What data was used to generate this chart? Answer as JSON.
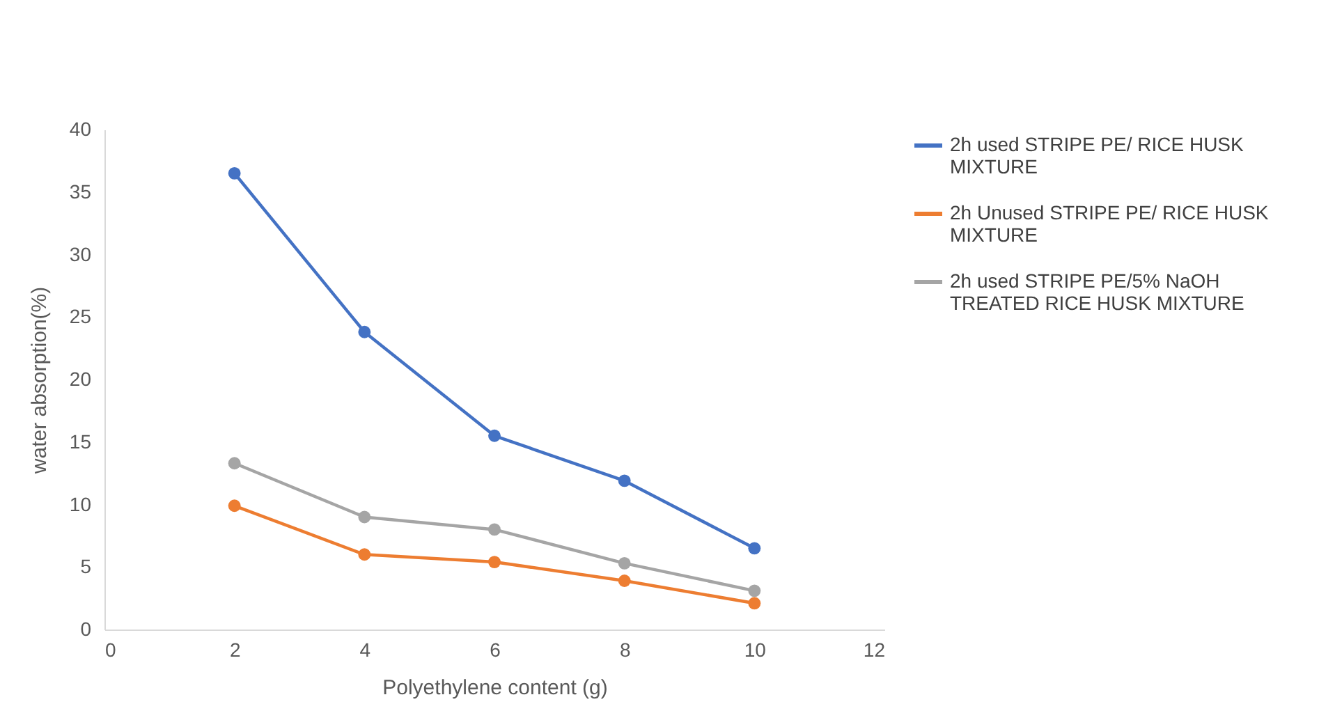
{
  "chart_data": {
    "type": "line",
    "xlabel": "Polyethylene content (g)",
    "ylabel": "water absorption(%)",
    "x": [
      2,
      4,
      6,
      8,
      10
    ],
    "series": [
      {
        "name": "2h used STRIPE PE/ RICE HUSK MIXTURE",
        "color": "#4472c4",
        "values": [
          36.5,
          23.8,
          15.5,
          11.9,
          6.5
        ]
      },
      {
        "name": "2h Unused STRIPE PE/ RICE HUSK MIXTURE",
        "color": "#ed7d31",
        "values": [
          9.9,
          6.0,
          5.4,
          3.9,
          2.1
        ]
      },
      {
        "name": "2h used STRIPE PE/5% NaOH TREATED RICE HUSK MIXTURE",
        "color": "#a5a5a5",
        "values": [
          13.3,
          9.0,
          8.0,
          5.3,
          3.1
        ]
      }
    ],
    "xlim": [
      0,
      12
    ],
    "xticks": [
      0,
      2,
      4,
      6,
      8,
      10,
      12
    ],
    "ylim": [
      0,
      40
    ],
    "yticks": [
      0,
      5,
      10,
      15,
      20,
      25,
      30,
      35,
      40
    ],
    "grid": false,
    "legend": "right",
    "marker": "circle",
    "line_style": "solid"
  }
}
